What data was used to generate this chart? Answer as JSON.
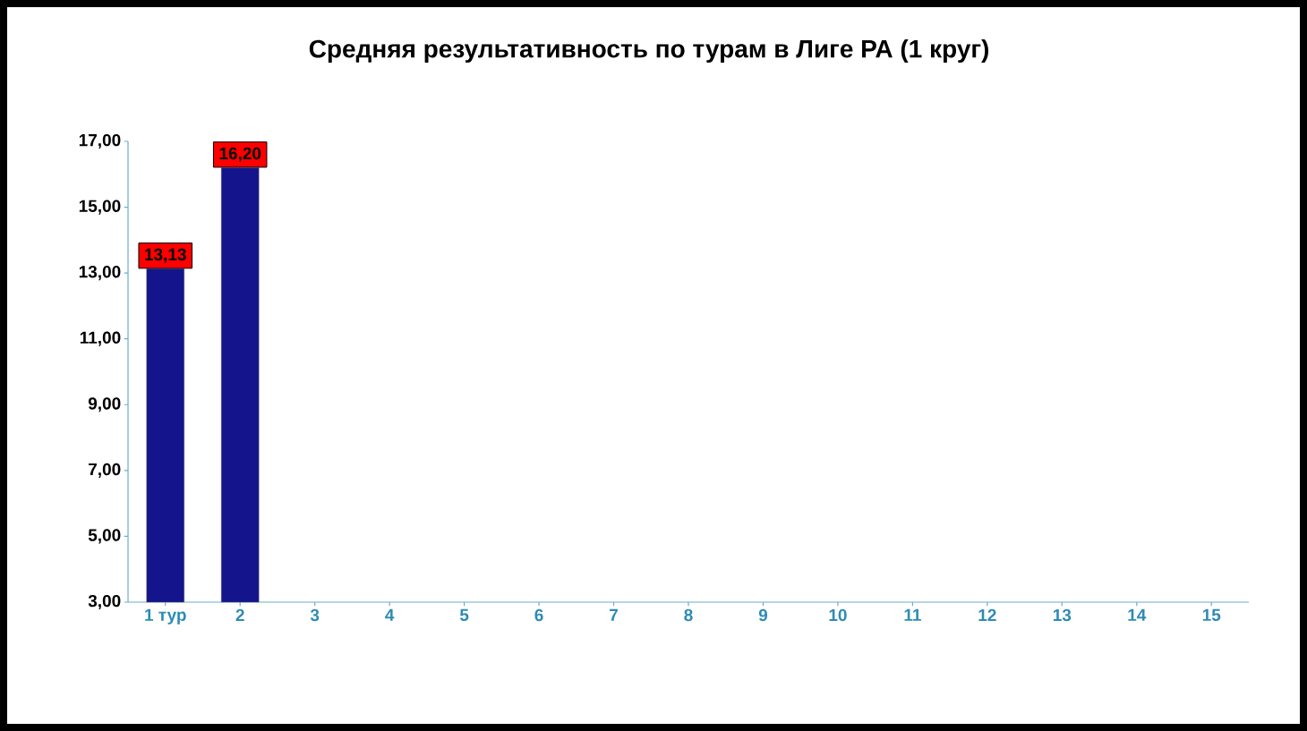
{
  "chart_data": {
    "type": "bar",
    "title": "Средняя результативность по турам в Лиге РА (1 круг)",
    "categories": [
      "1 тур",
      "2",
      "3",
      "4",
      "5",
      "6",
      "7",
      "8",
      "9",
      "10",
      "11",
      "12",
      "13",
      "14",
      "15"
    ],
    "values": [
      13.13,
      16.2,
      null,
      null,
      null,
      null,
      null,
      null,
      null,
      null,
      null,
      null,
      null,
      null,
      null
    ],
    "value_labels": [
      "13,13",
      "16,20",
      null,
      null,
      null,
      null,
      null,
      null,
      null,
      null,
      null,
      null,
      null,
      null,
      null
    ],
    "color": "#14148c",
    "ylim": [
      3,
      17
    ],
    "yticks": [
      {
        "value": 3,
        "label": "3,00"
      },
      {
        "value": 5,
        "label": "5,00"
      },
      {
        "value": 7,
        "label": "7,00"
      },
      {
        "value": 9,
        "label": "9,00"
      },
      {
        "value": 11,
        "label": "11,00"
      },
      {
        "value": 13,
        "label": "13,00"
      },
      {
        "value": 15,
        "label": "15,00"
      },
      {
        "value": 17,
        "label": "17,00"
      }
    ],
    "grid": false
  }
}
